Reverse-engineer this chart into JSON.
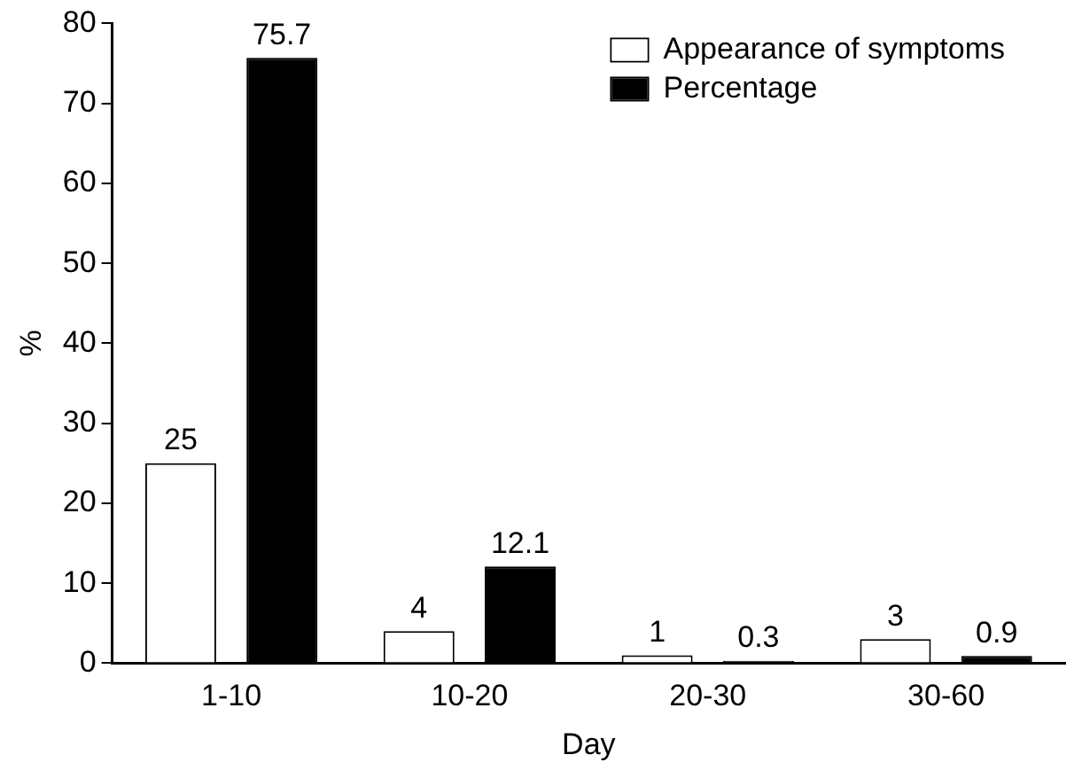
{
  "chart_data": {
    "type": "bar",
    "xlabel": "Day",
    "ylabel": "%",
    "categories": [
      "1-10",
      "10-20",
      "20-30",
      "30-60"
    ],
    "series": [
      {
        "name": "Appearance of symptoms",
        "color": "#ffffff",
        "values": [
          25,
          4,
          1,
          3
        ]
      },
      {
        "name": "Percentage",
        "color": "#000000",
        "values": [
          75.7,
          12.1,
          0.3,
          0.9
        ]
      }
    ],
    "ylim": [
      0,
      80
    ],
    "yticks": [
      0,
      10,
      20,
      30,
      40,
      50,
      60,
      70,
      80
    ],
    "grid": false,
    "legend": "top right",
    "data_labels": true
  }
}
